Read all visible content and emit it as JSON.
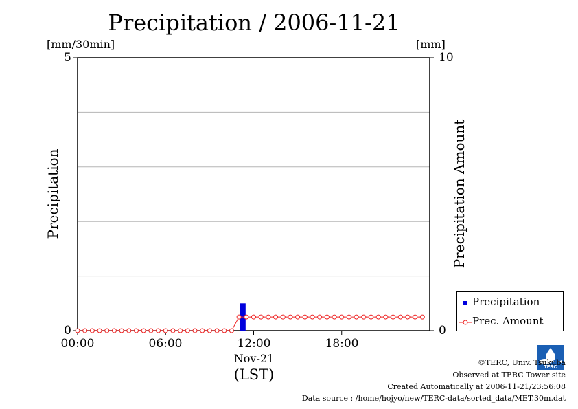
{
  "chart_data": {
    "type": "bar+line",
    "title": "Precipitation / 2006-11-21",
    "left_axis": {
      "label": "Precipitation",
      "unit": "[mm/30min]",
      "ylim": [
        0,
        5
      ],
      "ticks": [
        "0",
        "5"
      ],
      "grid_lines": [
        1,
        2,
        3,
        4
      ]
    },
    "right_axis": {
      "label": "Precipitation Amount",
      "unit": "[mm]",
      "ylim": [
        0,
        10
      ],
      "ticks": [
        "0",
        "10"
      ]
    },
    "x_axis": {
      "range_hours": [
        0,
        24
      ],
      "ticks": [
        {
          "hour": 0,
          "label": "00:00"
        },
        {
          "hour": 6,
          "label": "06:00"
        },
        {
          "hour": 12,
          "label": "12:00"
        },
        {
          "hour": 18,
          "label": "18:00"
        }
      ],
      "date_label": "Nov-21",
      "unit": "(LST)"
    },
    "series": [
      {
        "name": "Precipitation",
        "type": "bar",
        "axis": "left",
        "color": "#0000dd",
        "bars": [
          {
            "start_hour": 11.0,
            "end_hour": 11.5,
            "value": 0.5
          }
        ]
      },
      {
        "name": "Prec. Amount",
        "type": "line-marker",
        "axis": "right",
        "color": "#ee2222",
        "step_hours": 0.5,
        "values": [
          0,
          0,
          0,
          0,
          0,
          0,
          0,
          0,
          0,
          0,
          0,
          0,
          0,
          0,
          0,
          0,
          0,
          0,
          0,
          0,
          0,
          0,
          0.5,
          0.5,
          0.5,
          0.5,
          0.5,
          0.5,
          0.5,
          0.5,
          0.5,
          0.5,
          0.5,
          0.5,
          0.5,
          0.5,
          0.5,
          0.5,
          0.5,
          0.5,
          0.5,
          0.5,
          0.5,
          0.5,
          0.5,
          0.5,
          0.5,
          0.5
        ]
      }
    ],
    "legend_position": "bottom-right"
  },
  "footer": {
    "copyright": "©TERC, Univ. Tsukuba",
    "observed": "Observed at TERC Tower site",
    "created": "Created Automatically at 2006-11-21/23:56:08",
    "source": "Data source : /home/hojyo/new/TERC-data/sorted_data/MET.30m.dat",
    "logo_text": "TERC"
  }
}
